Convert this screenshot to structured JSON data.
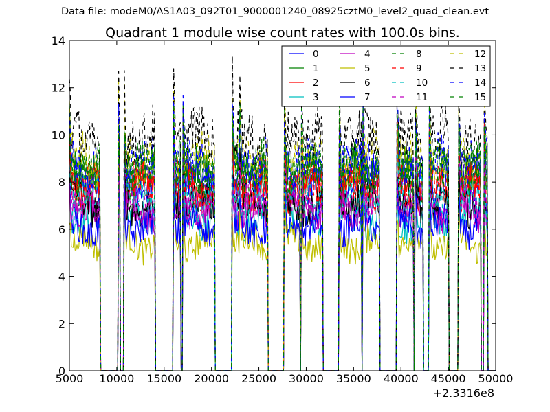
{
  "chart_data": {
    "type": "line",
    "suptitle": "Data file: modeM0/AS1A03_092T01_9000001240_08925cztM0_level2_quad_clean.evt",
    "title": "Quadrant 1 module wise count rates with 100.0s bins.",
    "xlabel": "",
    "ylabel": "",
    "xlim": [
      5000,
      50000
    ],
    "ylim": [
      0,
      14
    ],
    "x_offset_label": "+2.3316e8",
    "x_ticks": [
      5000,
      10000,
      15000,
      20000,
      25000,
      30000,
      35000,
      40000,
      45000,
      50000
    ],
    "x_tick_labels": [
      "5000",
      "10000",
      "15000",
      "20000",
      "25000",
      "30000",
      "35000",
      "40000",
      "45000",
      "50000"
    ],
    "y_ticks": [
      0,
      2,
      4,
      6,
      8,
      10,
      12,
      14
    ],
    "y_tick_labels": [
      "0",
      "2",
      "4",
      "6",
      "8",
      "10",
      "12",
      "14"
    ],
    "bin_width": 100,
    "grid": false,
    "legend_position": "top-right",
    "legend_columns": 4,
    "data_intervals": [
      [
        5000,
        8200
      ],
      [
        10200,
        10300
      ],
      [
        10800,
        14000
      ],
      [
        16000,
        16700
      ],
      [
        17000,
        20300
      ],
      [
        22200,
        22900
      ],
      [
        23000,
        25900
      ],
      [
        27700,
        29300
      ],
      [
        29500,
        31700
      ],
      [
        33500,
        35800
      ],
      [
        36000,
        37700
      ],
      [
        39600,
        41300
      ],
      [
        41500,
        42300
      ],
      [
        43000,
        45000
      ],
      [
        46100,
        48400
      ],
      [
        48800,
        49100
      ]
    ],
    "series": [
      {
        "name": "0",
        "level": 8.0,
        "color": "#0000ff",
        "dash": "solid"
      },
      {
        "name": "1",
        "level": 8.5,
        "color": "#008000",
        "dash": "solid"
      },
      {
        "name": "2",
        "level": 7.8,
        "color": "#ff0000",
        "dash": "solid"
      },
      {
        "name": "3",
        "level": 6.4,
        "color": "#00bfbf",
        "dash": "solid"
      },
      {
        "name": "4",
        "level": 6.8,
        "color": "#bf00bf",
        "dash": "solid"
      },
      {
        "name": "5",
        "level": 5.4,
        "color": "#bfbf00",
        "dash": "solid"
      },
      {
        "name": "6",
        "level": 7.1,
        "color": "#000000",
        "dash": "solid"
      },
      {
        "name": "7",
        "level": 6.1,
        "color": "#0000ff",
        "dash": "solid"
      },
      {
        "name": "8",
        "level": 8.3,
        "color": "#008000",
        "dash": "dashed"
      },
      {
        "name": "9",
        "level": 7.9,
        "color": "#ff0000",
        "dash": "dashed"
      },
      {
        "name": "10",
        "level": 7.3,
        "color": "#00bfbf",
        "dash": "dashed"
      },
      {
        "name": "11",
        "level": 7.0,
        "color": "#bf00bf",
        "dash": "dashed"
      },
      {
        "name": "12",
        "level": 9.0,
        "color": "#bfbf00",
        "dash": "dashed"
      },
      {
        "name": "13",
        "level": 9.9,
        "color": "#000000",
        "dash": "dashed"
      },
      {
        "name": "14",
        "level": 8.8,
        "color": "#0000ff",
        "dash": "dashed"
      },
      {
        "name": "15",
        "level": 8.6,
        "color": "#008000",
        "dash": "dashed"
      }
    ]
  }
}
